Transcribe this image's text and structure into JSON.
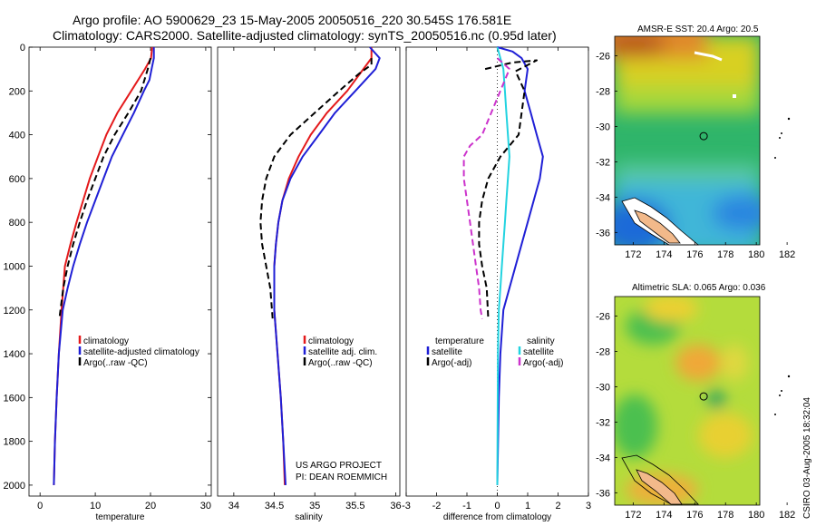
{
  "header": {
    "line1": "Argo profile: AO 5900629_23 15-May-2005 20050516_220 30.545S 176.581E",
    "line2": "Climatology: CARS2000. Satellite-adjusted climatology: synTS_20050516.nc (0.95d later)"
  },
  "credit": {
    "line1": "US ARGO PROJECT",
    "line2": "PI: DEAN ROEMMICH"
  },
  "footer_stamp": "CSIRO 03-Aug-2005 18:32:04",
  "colors": {
    "climatology": "#e41a1c",
    "satellite": "#1f1fd6",
    "argo": "#000000",
    "sal_satellite": "#22d3e0",
    "sal_argo": "#cc33cc"
  },
  "chart_data": [
    {
      "type": "line",
      "id": "temperature",
      "xlabel": "temperature",
      "ylabel": "",
      "xlim": [
        -2,
        31
      ],
      "ylim": [
        2050,
        0
      ],
      "y_reversed": true,
      "xticks": [
        0,
        10,
        20,
        30
      ],
      "yticks": [
        0,
        200,
        400,
        600,
        800,
        1000,
        1200,
        1400,
        1600,
        1800,
        2000
      ],
      "legend": [
        "climatology",
        "satellite-adjusted climatology",
        "Argo(..raw -QC)"
      ],
      "legend_placement": "lower-right",
      "series": [
        {
          "name": "climatology",
          "color": "#e41a1c",
          "dash": "solid",
          "x": [
            20.3,
            20.1,
            19.0,
            16.5,
            14.0,
            12.0,
            10.5,
            9.0,
            7.8,
            6.6,
            5.5,
            4.5,
            3.9,
            3.4,
            3.0,
            2.7,
            2.5
          ],
          "y": [
            0,
            50,
            100,
            200,
            300,
            400,
            500,
            600,
            700,
            800,
            900,
            1000,
            1200,
            1400,
            1600,
            1800,
            2000
          ]
        },
        {
          "name": "satellite-adjusted climatology",
          "color": "#1f1fd6",
          "dash": "solid",
          "x": [
            20.6,
            20.6,
            20.2,
            19.8,
            18.8,
            17.0,
            15.0,
            13.0,
            11.5,
            10.0,
            8.5,
            7.2,
            6.0,
            5.0,
            4.1,
            3.4,
            3.0,
            2.7,
            2.5
          ],
          "y": [
            0,
            50,
            100,
            150,
            200,
            300,
            400,
            500,
            600,
            700,
            800,
            900,
            1000,
            1100,
            1200,
            1400,
            1600,
            1800,
            2000
          ]
        },
        {
          "name": "Argo(..raw -QC)",
          "color": "#000000",
          "dash": "dash",
          "x": [
            20.0,
            19.5,
            18.3,
            16.0,
            13.5,
            11.5,
            10.0,
            8.5,
            7.2,
            6.0,
            5.0,
            4.2,
            3.7,
            3.5
          ],
          "y": [
            50,
            100,
            200,
            300,
            400,
            500,
            600,
            700,
            800,
            900,
            1000,
            1100,
            1200,
            1240
          ]
        }
      ]
    },
    {
      "type": "line",
      "id": "salinity",
      "xlabel": "salinity",
      "ylabel": "",
      "xlim": [
        33.8,
        36.05
      ],
      "ylim": [
        2050,
        0
      ],
      "y_reversed": true,
      "xticks": [
        34,
        34.5,
        35,
        35.5,
        36
      ],
      "xtick_labels": [
        "34",
        "34.5",
        "35",
        "35.5",
        "36"
      ],
      "legend": [
        "climatology",
        "satellite adj. clim.",
        "Argo(..raw -QC)"
      ],
      "legend_placement": "lower-right",
      "series": [
        {
          "name": "climatology",
          "color": "#e41a1c",
          "dash": "solid",
          "x": [
            35.7,
            35.7,
            35.6,
            35.4,
            35.15,
            34.95,
            34.8,
            34.68,
            34.6,
            34.55,
            34.52,
            34.5,
            34.5,
            34.54,
            34.58,
            34.61,
            34.63
          ],
          "y": [
            0,
            50,
            100,
            200,
            300,
            400,
            500,
            600,
            700,
            800,
            900,
            1000,
            1200,
            1400,
            1600,
            1800,
            2000
          ]
        },
        {
          "name": "satellite adj. clim.",
          "color": "#1f1fd6",
          "dash": "solid",
          "x": [
            35.68,
            35.8,
            35.75,
            35.5,
            35.25,
            35.05,
            34.85,
            34.7,
            34.6,
            34.55,
            34.52,
            34.5,
            34.5,
            34.54,
            34.58,
            34.61,
            34.64
          ],
          "y": [
            0,
            50,
            100,
            200,
            300,
            400,
            500,
            600,
            700,
            800,
            900,
            1000,
            1200,
            1400,
            1600,
            1800,
            2000
          ]
        },
        {
          "name": "Argo(..raw -QC)",
          "color": "#000000",
          "dash": "dash",
          "x": [
            35.7,
            35.7,
            35.55,
            35.3,
            35.0,
            34.7,
            34.5,
            34.4,
            34.35,
            34.33,
            34.35,
            34.4,
            34.45,
            34.48
          ],
          "y": [
            50,
            80,
            120,
            200,
            300,
            400,
            500,
            600,
            700,
            800,
            900,
            1000,
            1100,
            1240
          ]
        }
      ]
    },
    {
      "type": "line",
      "id": "difference",
      "xlabel": "difference from climatology",
      "ylabel": "",
      "xlim": [
        -3,
        3
      ],
      "ylim": [
        2050,
        0
      ],
      "y_reversed": true,
      "xticks": [
        -3,
        -2,
        -1,
        0,
        1,
        2,
        3
      ],
      "legend": [
        "temperature",
        "satellite",
        "Argo(-adj)",
        "salinity",
        "satellite",
        "Argo(-adj)"
      ],
      "legend_placement": "lower-center",
      "series": [
        {
          "name": "satellite",
          "group": "temperature",
          "color": "#1f1fd6",
          "dash": "solid",
          "x": [
            0.0,
            0.5,
            0.8,
            1.0,
            0.9,
            1.1,
            1.3,
            1.5,
            1.4,
            1.2,
            1.0,
            0.8,
            0.6,
            0.4,
            0.2,
            0.1,
            0.05,
            0.0
          ],
          "y": [
            0,
            20,
            50,
            100,
            200,
            300,
            400,
            500,
            600,
            700,
            800,
            900,
            1000,
            1100,
            1200,
            1400,
            1600,
            2000
          ]
        },
        {
          "name": "Argo(-adj)",
          "group": "temperature",
          "color": "#000000",
          "dash": "dash",
          "x": [
            -0.4,
            0.5,
            1.3,
            0.6,
            0.9,
            0.7,
            0.1,
            -0.3,
            -0.5,
            -0.6,
            -0.6,
            -0.5,
            -0.35,
            -0.3
          ],
          "y": [
            100,
            70,
            60,
            110,
            200,
            400,
            500,
            600,
            700,
            800,
            900,
            1000,
            1100,
            1240
          ]
        },
        {
          "name": "satellite",
          "group": "salinity",
          "color": "#22d3e0",
          "dash": "solid",
          "x": [
            0.0,
            0.1,
            0.2,
            0.25,
            0.3,
            0.35,
            0.4,
            0.35,
            0.3,
            0.25,
            0.2,
            0.15,
            0.1,
            0.05,
            0.02,
            0.0
          ],
          "y": [
            0,
            50,
            100,
            200,
            300,
            400,
            500,
            600,
            700,
            800,
            900,
            1000,
            1100,
            1200,
            1400,
            2000
          ]
        },
        {
          "name": "Argo(-adj)",
          "group": "salinity",
          "color": "#cc33cc",
          "dash": "dash",
          "x": [
            0.0,
            0.4,
            -0.2,
            -0.5,
            -0.9,
            -1.1,
            -1.1,
            -1.0,
            -0.9,
            -0.8,
            -0.7,
            -0.6,
            -0.55,
            -0.5
          ],
          "y": [
            50,
            100,
            300,
            400,
            450,
            500,
            600,
            700,
            800,
            900,
            1000,
            1100,
            1200,
            1240
          ]
        }
      ]
    },
    {
      "type": "heatmap",
      "id": "sst_map",
      "title": "AMSR-E SST: 20.4 Argo: 20.5",
      "xlim": [
        170.8,
        182.7
      ],
      "ylim": [
        -36.7,
        -24.9
      ],
      "xticks": [
        172,
        174,
        176,
        178,
        180,
        182
      ],
      "yticks": [
        -26,
        -28,
        -30,
        -32,
        -34,
        -36
      ],
      "profile_marker": {
        "lon": 176.58,
        "lat": -30.55
      }
    },
    {
      "type": "heatmap",
      "id": "sla_map",
      "title": "Altimetric SLA: 0.065 Argo: 0.036",
      "xlim": [
        170.8,
        182.7
      ],
      "ylim": [
        -36.7,
        -24.9
      ],
      "xticks": [
        172,
        174,
        176,
        178,
        180,
        182
      ],
      "yticks": [
        -26,
        -28,
        -30,
        -32,
        -34,
        -36
      ],
      "profile_marker": {
        "lon": 176.58,
        "lat": -30.55
      }
    }
  ]
}
